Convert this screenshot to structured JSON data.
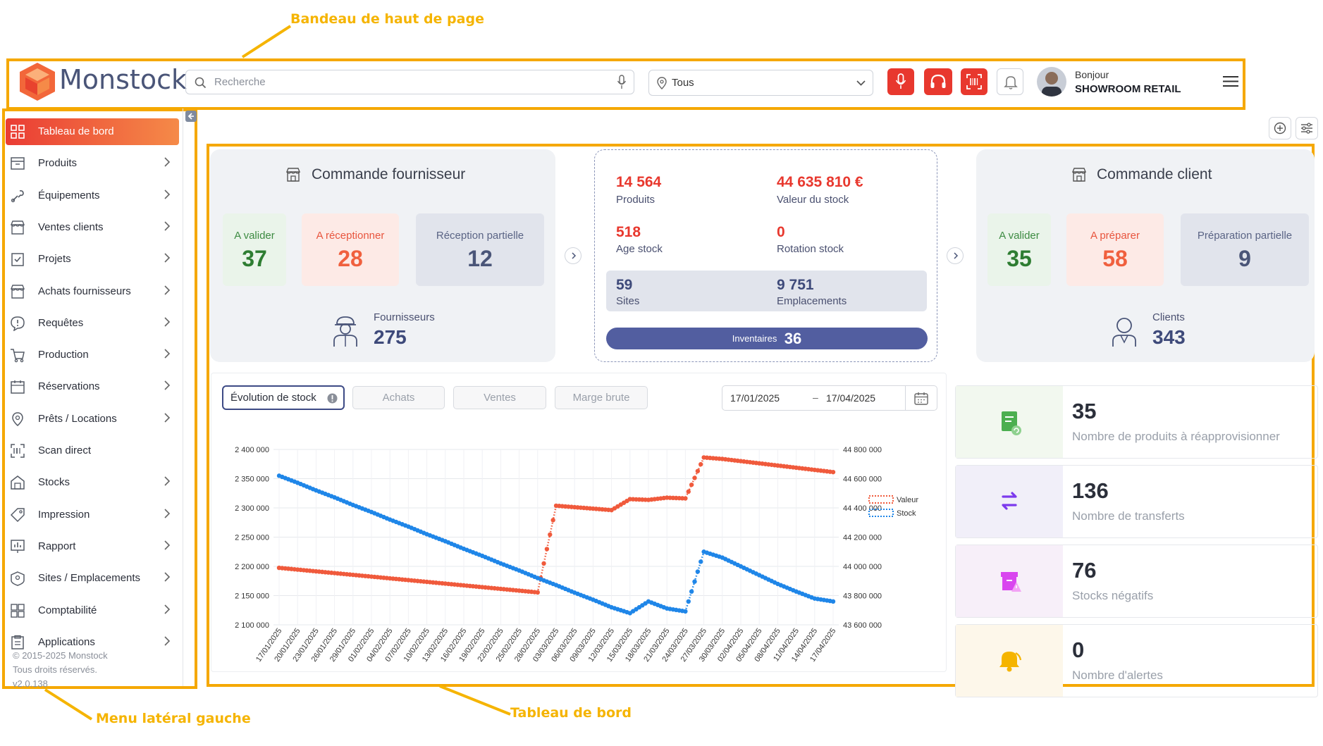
{
  "callouts": {
    "top": "Bandeau de haut de page",
    "left": "Menu latéral gauche",
    "dashboard": "Tableau de bord"
  },
  "header": {
    "logo_text": "Monstock",
    "search_placeholder": "Recherche",
    "site_select_value": "Tous",
    "greeting": "Bonjour",
    "user_name": "SHOWROOM RETAIL",
    "icons": [
      "microphone-icon",
      "headset-icon",
      "barcode-scanner-icon",
      "bell-icon"
    ]
  },
  "sidebar": {
    "items": [
      {
        "label": "Tableau de bord",
        "icon": "grid-icon",
        "active": true,
        "chevron": false
      },
      {
        "label": "Produits",
        "icon": "product-icon",
        "chevron": true
      },
      {
        "label": "Équipements",
        "icon": "wrench-icon",
        "chevron": true
      },
      {
        "label": "Ventes clients",
        "icon": "store-icon",
        "chevron": true
      },
      {
        "label": "Projets",
        "icon": "clipboard-check-icon",
        "chevron": true
      },
      {
        "label": "Achats fournisseurs",
        "icon": "store-icon",
        "chevron": true
      },
      {
        "label": "Requêtes",
        "icon": "alert-bubble-icon",
        "chevron": true
      },
      {
        "label": "Production",
        "icon": "cart-icon",
        "chevron": true
      },
      {
        "label": "Réservations",
        "icon": "calendar-icon",
        "chevron": true
      },
      {
        "label": "Prêts / Locations",
        "icon": "location-pin-icon",
        "chevron": true
      },
      {
        "label": "Scan direct",
        "icon": "scan-icon",
        "chevron": false
      },
      {
        "label": "Stocks",
        "icon": "warehouse-icon",
        "chevron": true
      },
      {
        "label": "Impression",
        "icon": "tag-icon",
        "chevron": true
      },
      {
        "label": "Rapport",
        "icon": "report-icon",
        "chevron": true
      },
      {
        "label": "Sites / Emplacements",
        "icon": "site-icon",
        "chevron": true
      },
      {
        "label": "Comptabilité",
        "icon": "accounting-icon",
        "chevron": true
      },
      {
        "label": "Applications",
        "icon": "app-icon",
        "chevron": true
      }
    ],
    "footer_copyright": "© 2015-2025 Monstock",
    "footer_rights": "Tous droits réservés.",
    "footer_version": "v2.0.138"
  },
  "supplier": {
    "title": "Commande fournisseur",
    "to_validate_label": "A valider",
    "to_validate": "37",
    "to_receive_label": "A réceptionner",
    "to_receive": "28",
    "partial_label": "Réception partielle",
    "partial": "12",
    "count_label": "Fournisseurs",
    "count": "275"
  },
  "stock_summary": {
    "products_value": "14 564",
    "products_label": "Produits",
    "stock_value": "44 635 810 €",
    "stock_value_label": "Valeur du stock",
    "age_value": "518",
    "age_label": "Age stock",
    "rotation_value": "0",
    "rotation_label": "Rotation stock",
    "sites_value": "59",
    "sites_label": "Sites",
    "locations_value": "9 751",
    "locations_label": "Emplacements",
    "inventory_label": "Inventaires",
    "inventory_value": "36"
  },
  "customer": {
    "title": "Commande client",
    "to_validate_label": "A valider",
    "to_validate": "35",
    "to_prepare_label": "A préparer",
    "to_prepare": "58",
    "partial_label": "Préparation partielle",
    "partial": "9",
    "count_label": "Clients",
    "count": "343"
  },
  "chart_tabs": {
    "active": "Évolution de stock",
    "tab2": "Achats",
    "tab3": "Ventes",
    "tab4": "Marge brute"
  },
  "date_range": {
    "start": "17/01/2025",
    "separator": "–",
    "end": "17/04/2025"
  },
  "kpis": [
    {
      "value": "35",
      "label": "Nombre de produits à réapprovisionner",
      "icon": "restock-icon",
      "color": "#4caf50",
      "bg": "#f2f8ef"
    },
    {
      "value": "136",
      "label": "Nombre de transferts",
      "icon": "transfer-icon",
      "color": "#7c3aed",
      "bg": "#f1eff9"
    },
    {
      "value": "76",
      "label": "Stocks négatifs",
      "icon": "negative-stock-icon",
      "color": "#d946ef",
      "bg": "#f7eff9"
    },
    {
      "value": "0",
      "label": "Nombre d'alertes",
      "icon": "alert-bell-icon",
      "color": "#f5b400",
      "bg": "#fdf7ea"
    }
  ],
  "chart_data": {
    "type": "line",
    "x_tick_labels": [
      "17/01/2025",
      "20/01/2025",
      "23/01/2025",
      "26/01/2025",
      "29/01/2025",
      "01/02/2025",
      "04/02/2025",
      "07/02/2025",
      "10/02/2025",
      "13/02/2025",
      "16/02/2025",
      "19/02/2025",
      "22/02/2025",
      "25/02/2025",
      "28/02/2025",
      "03/03/2025",
      "06/03/2025",
      "09/03/2025",
      "12/03/2025",
      "15/03/2025",
      "18/03/2025",
      "21/03/2025",
      "24/03/2025",
      "27/03/2025",
      "30/03/2025",
      "02/04/2025",
      "05/04/2025",
      "08/04/2025",
      "11/04/2025",
      "14/04/2025",
      "17/04/2025"
    ],
    "y_left": {
      "ticks": [
        "2 400 000",
        "2 350 000",
        "2 300 000",
        "2 250 000",
        "2 200 000",
        "2 150 000",
        "2 100 000"
      ],
      "min": 2100000,
      "max": 2400000
    },
    "y_right": {
      "ticks": [
        "44 800 000",
        "44 600 000",
        "44 400 000",
        "44 200 000",
        "44 000 000",
        "43 800 000",
        "43 600 000"
      ],
      "min": 43600000,
      "max": 44800000
    },
    "legend_position": "right",
    "series": [
      {
        "name": "Valeur",
        "axis": "right",
        "color": "#f05a3c",
        "values": [
          43990000,
          43978000,
          43966000,
          43954000,
          43942000,
          43930000,
          43918000,
          43906000,
          43894000,
          43882000,
          43870000,
          43858000,
          43846000,
          43834000,
          43822000,
          44415000,
          44405000,
          44395000,
          44385000,
          44460000,
          44455000,
          44470000,
          44465000,
          44745000,
          44735000,
          44720000,
          44705000,
          44690000,
          44675000,
          44660000,
          44645000
        ]
      },
      {
        "name": "Stock",
        "axis": "left",
        "color": "#1f86e8",
        "values": [
          2355000,
          2343000,
          2330000,
          2318000,
          2305000,
          2293000,
          2280000,
          2268000,
          2255000,
          2243000,
          2230000,
          2218000,
          2205000,
          2193000,
          2180000,
          2168000,
          2155000,
          2143000,
          2130000,
          2120000,
          2140000,
          2128000,
          2123000,
          2225000,
          2215000,
          2200000,
          2185000,
          2170000,
          2157000,
          2145000,
          2140000
        ]
      }
    ]
  }
}
